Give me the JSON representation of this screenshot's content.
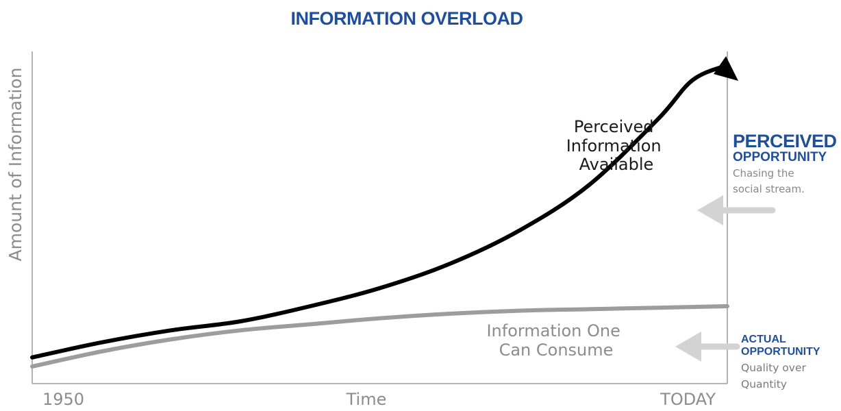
{
  "title": "INFORMATION OVERLOAD",
  "colors": {
    "brand": "#1f4e9a",
    "axis": "#b3b3b3",
    "axis_text": "#8c8c8c",
    "perceived_line": "#000000",
    "consume_line": "#9d9d9d",
    "arrow": "#d3d3d3"
  },
  "chart_data": {
    "type": "line",
    "ylabel": "Amount of Information",
    "xlabel": "Time",
    "x_tick_labels": [
      "1950",
      "TODAY"
    ],
    "series": [
      {
        "name": "Perceived Information Available",
        "x": [
          0,
          0.1,
          0.2,
          0.3,
          0.4,
          0.5,
          0.6,
          0.7,
          0.8,
          0.9,
          0.95,
          1.0
        ],
        "y": [
          0.03,
          0.08,
          0.12,
          0.15,
          0.2,
          0.26,
          0.34,
          0.45,
          0.6,
          0.82,
          0.95,
          1.0
        ]
      },
      {
        "name": "Information One Can Consume",
        "x": [
          0,
          0.1,
          0.2,
          0.3,
          0.4,
          0.5,
          0.6,
          0.7,
          0.8,
          0.9,
          1.0
        ],
        "y": [
          0.0,
          0.05,
          0.09,
          0.12,
          0.14,
          0.16,
          0.175,
          0.185,
          0.19,
          0.195,
          0.2
        ]
      }
    ],
    "labels": {
      "perceived": [
        "Perceived",
        "Information",
        "Available"
      ],
      "consume": [
        "Information One",
        "Can Consume"
      ]
    }
  },
  "callouts": {
    "perceived": {
      "title": "PERCEIVED",
      "subtitle": "OPPORTUNITY",
      "note_lines": [
        "Chasing the",
        "social stream."
      ]
    },
    "actual": {
      "title": "ACTUAL",
      "subtitle": "OPPORTUNITY",
      "note_lines": [
        "Quality over",
        "Quantity"
      ]
    }
  }
}
